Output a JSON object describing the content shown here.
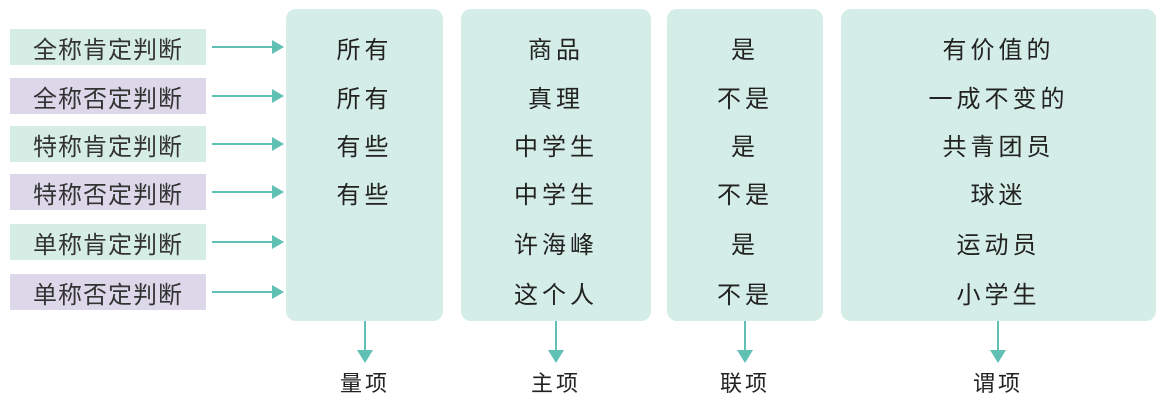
{
  "judgment_types": [
    {
      "label": "全称肯定判断",
      "kind": "affirm"
    },
    {
      "label": "全称否定判断",
      "kind": "negate"
    },
    {
      "label": "特称肯定判断",
      "kind": "affirm"
    },
    {
      "label": "特称否定判断",
      "kind": "negate"
    },
    {
      "label": "单称肯定判断",
      "kind": "affirm"
    },
    {
      "label": "单称否定判断",
      "kind": "negate"
    }
  ],
  "quantifier_column": {
    "rows": [
      "所有",
      "所有",
      "有些",
      "有些",
      "",
      ""
    ],
    "term": "量项"
  },
  "subject_column": {
    "rows": [
      "商品",
      "真理",
      "中学生",
      "中学生",
      "许海峰",
      "这个人"
    ],
    "term": "主项"
  },
  "copula_column": {
    "rows": [
      "是",
      "不是",
      "是",
      "不是",
      "是",
      "不是"
    ],
    "term": "联项"
  },
  "predicate_column": {
    "rows": [
      "有价值的",
      "一成不变的",
      "共青团员",
      "球迷",
      "运动员",
      "小学生"
    ],
    "term": "谓项"
  },
  "colors": {
    "affirm_bg": "#d6ede6",
    "negate_bg": "#ddd7ea",
    "panel_bg": "#d4ede7",
    "arrow": "#5fc0b3"
  }
}
